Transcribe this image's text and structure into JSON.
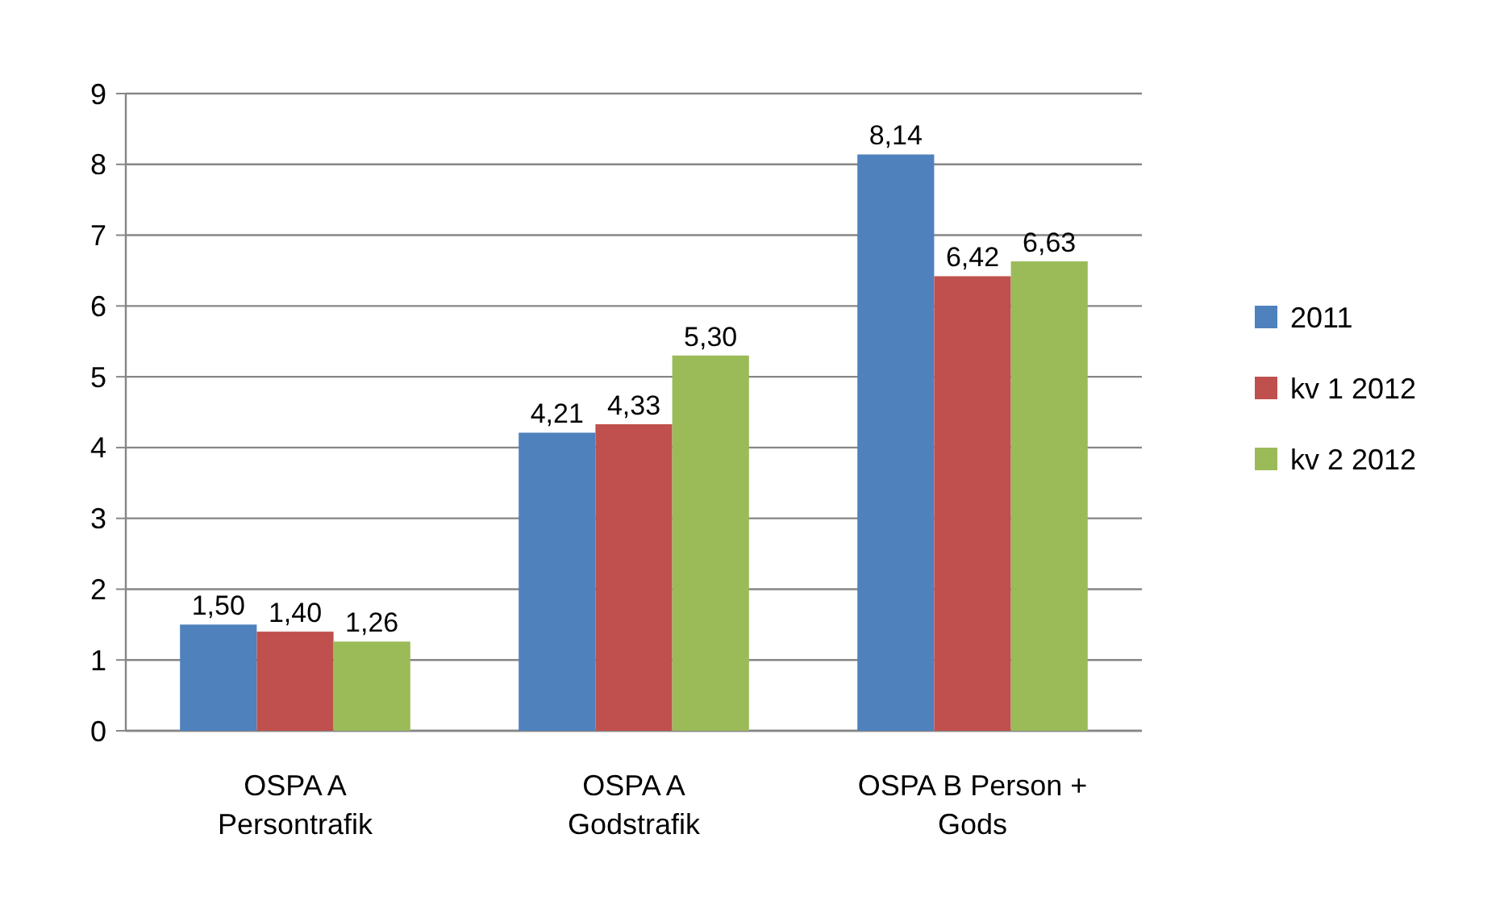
{
  "chart_data": {
    "type": "bar",
    "categories": [
      "OSPA A Persontrafik",
      "OSPA A Godstrafik",
      "OSPA B Person + Gods"
    ],
    "series": [
      {
        "name": "2011",
        "color": "#4f81bd",
        "values": [
          1.5,
          4.21,
          8.14
        ],
        "value_labels": [
          "1,50",
          "4,21",
          "8,14"
        ]
      },
      {
        "name": "kv 1 2012",
        "color": "#c0504d",
        "values": [
          1.4,
          4.33,
          6.42
        ],
        "value_labels": [
          "1,40",
          "4,33",
          "6,42"
        ]
      },
      {
        "name": "kv 2 2012",
        "color": "#9bbb59",
        "values": [
          1.26,
          5.3,
          6.63
        ],
        "value_labels": [
          "1,26",
          "5,30",
          "6,63"
        ]
      }
    ],
    "ylim": [
      0,
      9
    ],
    "yticks": [
      0,
      1,
      2,
      3,
      4,
      5,
      6,
      7,
      8,
      9
    ],
    "grid": "y",
    "legend": "right"
  }
}
